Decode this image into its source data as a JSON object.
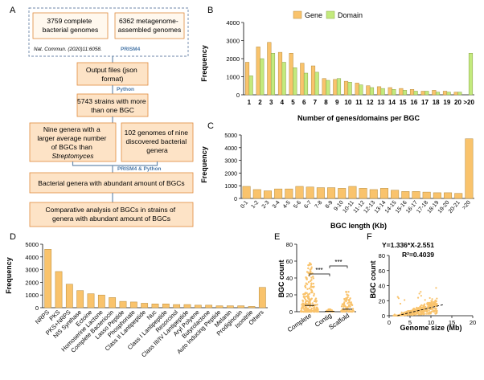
{
  "colors": {
    "orange": "#f9c36c",
    "green": "#c3ea7d",
    "bar_stroke": "#b58a3a"
  },
  "panels": {
    "a": "A",
    "b": "B",
    "c": "C",
    "d": "D",
    "e": "E",
    "f": "F"
  },
  "flow": {
    "box1": [
      "3759 complete",
      "bacterial genomes"
    ],
    "box2": [
      "6362 metagenome-",
      "assembled genomes"
    ],
    "citation": "Nat. Commun. (2020)11:6058.",
    "tool1": "PRISM4",
    "box3": [
      "Output files (json",
      "format)"
    ],
    "tool2": "Python",
    "box4": [
      "5743 strains with more",
      "than one BGC"
    ],
    "box5": [
      "Nine genera with a",
      "larger average number",
      "of BGCs than",
      "Streptomyces"
    ],
    "box6": [
      "102 genomes of nine",
      "discovered bacterial",
      "genera"
    ],
    "tool3": "PRISM4 & Python",
    "box7": "Bacterial genera with abundant amount of BGCs",
    "box8": [
      "Comparative analysis of BGCs in strains of",
      "genera with abundant amount of BGCs"
    ]
  },
  "chart_data": [
    {
      "id": "B",
      "type": "bar",
      "legend": [
        "Gene",
        "Domain"
      ],
      "categories": [
        "1",
        "2",
        "3",
        "4",
        "5",
        "6",
        "7",
        "8",
        "9",
        "10",
        "11",
        "12",
        "13",
        "14",
        "15",
        "16",
        "17",
        "18",
        "19",
        "20",
        ">20"
      ],
      "series": [
        {
          "name": "Gene",
          "values": [
            1800,
            2650,
            2900,
            2350,
            2300,
            1750,
            1600,
            900,
            850,
            750,
            650,
            500,
            450,
            400,
            350,
            300,
            200,
            250,
            200,
            150,
            0
          ]
        },
        {
          "name": "Domain",
          "values": [
            1050,
            2000,
            2300,
            1800,
            1500,
            1200,
            1250,
            800,
            900,
            700,
            550,
            400,
            350,
            300,
            250,
            200,
            200,
            150,
            150,
            150,
            2300
          ]
        }
      ],
      "xlabel": "Number of genes/domains per BGC",
      "ylabel": "Frequency",
      "ylim": [
        0,
        4000
      ],
      "yticks": [
        "0",
        "1000",
        "2000",
        "3000",
        "4000"
      ]
    },
    {
      "id": "C",
      "type": "bar",
      "categories": [
        "0-1",
        "1-2",
        "2-3",
        "3-4",
        "4-5",
        "5-6",
        "6-7",
        "7-8",
        "8-9",
        "9-10",
        "10-11",
        "11-12",
        "12-13",
        "13-14",
        "14-15",
        "15-16",
        "16-17",
        "17-18",
        "18-19",
        "19-20",
        "20-21",
        ">20"
      ],
      "values": [
        950,
        700,
        600,
        750,
        750,
        950,
        900,
        850,
        850,
        800,
        950,
        800,
        700,
        800,
        650,
        550,
        550,
        500,
        450,
        450,
        400,
        4700
      ],
      "xlabel": "BGC length (Kb)",
      "ylabel": "Frequency",
      "ylim": [
        0,
        5000
      ],
      "yticks": [
        "0",
        "1000",
        "2000",
        "3000",
        "4000",
        "5000"
      ]
    },
    {
      "id": "D",
      "type": "bar",
      "categories": [
        "NRPS",
        "PKS",
        "PKS+NRPS",
        "NIS Synthase",
        "Ectoine",
        "Homoserine Lactone",
        "Complete Bacteriocin",
        "Lasso Peptide",
        "Phosphonate",
        "Class II Lantipeptide",
        "Nuc",
        "Class I Lantipeptide",
        "Resorcinol",
        "Class III/IV Lantipeptide",
        "Aryl Polyene",
        "Butyrolactone",
        "Auto Inducing Peptide",
        "Melanin",
        "Prodiginosin",
        "Isonitrile",
        "Others"
      ],
      "values": [
        4600,
        2850,
        1850,
        1350,
        1100,
        1000,
        800,
        500,
        450,
        350,
        300,
        300,
        250,
        250,
        200,
        200,
        150,
        150,
        150,
        100,
        1600
      ],
      "ylabel": "Frequency",
      "ylim": [
        0,
        5000
      ],
      "yticks": [
        "0",
        "1000",
        "2000",
        "3000",
        "4000",
        "5000"
      ]
    },
    {
      "id": "E",
      "type": "scatter",
      "categories": [
        "Complete",
        "Contig",
        "Scaffold"
      ],
      "max_values": [
        62,
        3,
        25
      ],
      "ylabel": "BGC count",
      "ylim": [
        0,
        80
      ],
      "yticks": [
        "0",
        "20",
        "40",
        "60",
        "80"
      ],
      "significance": [
        "***",
        "***"
      ]
    },
    {
      "id": "F",
      "type": "scatter",
      "equation": "Y=1.336*X-2.551",
      "r2": "R²=0.4039",
      "slope": 1.336,
      "intercept": -2.551,
      "xlabel": "Genome size (Mb)",
      "ylabel": "BGC count",
      "xlim": [
        0,
        20
      ],
      "ylim": [
        0,
        80
      ],
      "xticks": [
        "0",
        "5",
        "10",
        "15",
        "20"
      ],
      "yticks": [
        "0",
        "20",
        "40",
        "60",
        "80"
      ]
    }
  ]
}
